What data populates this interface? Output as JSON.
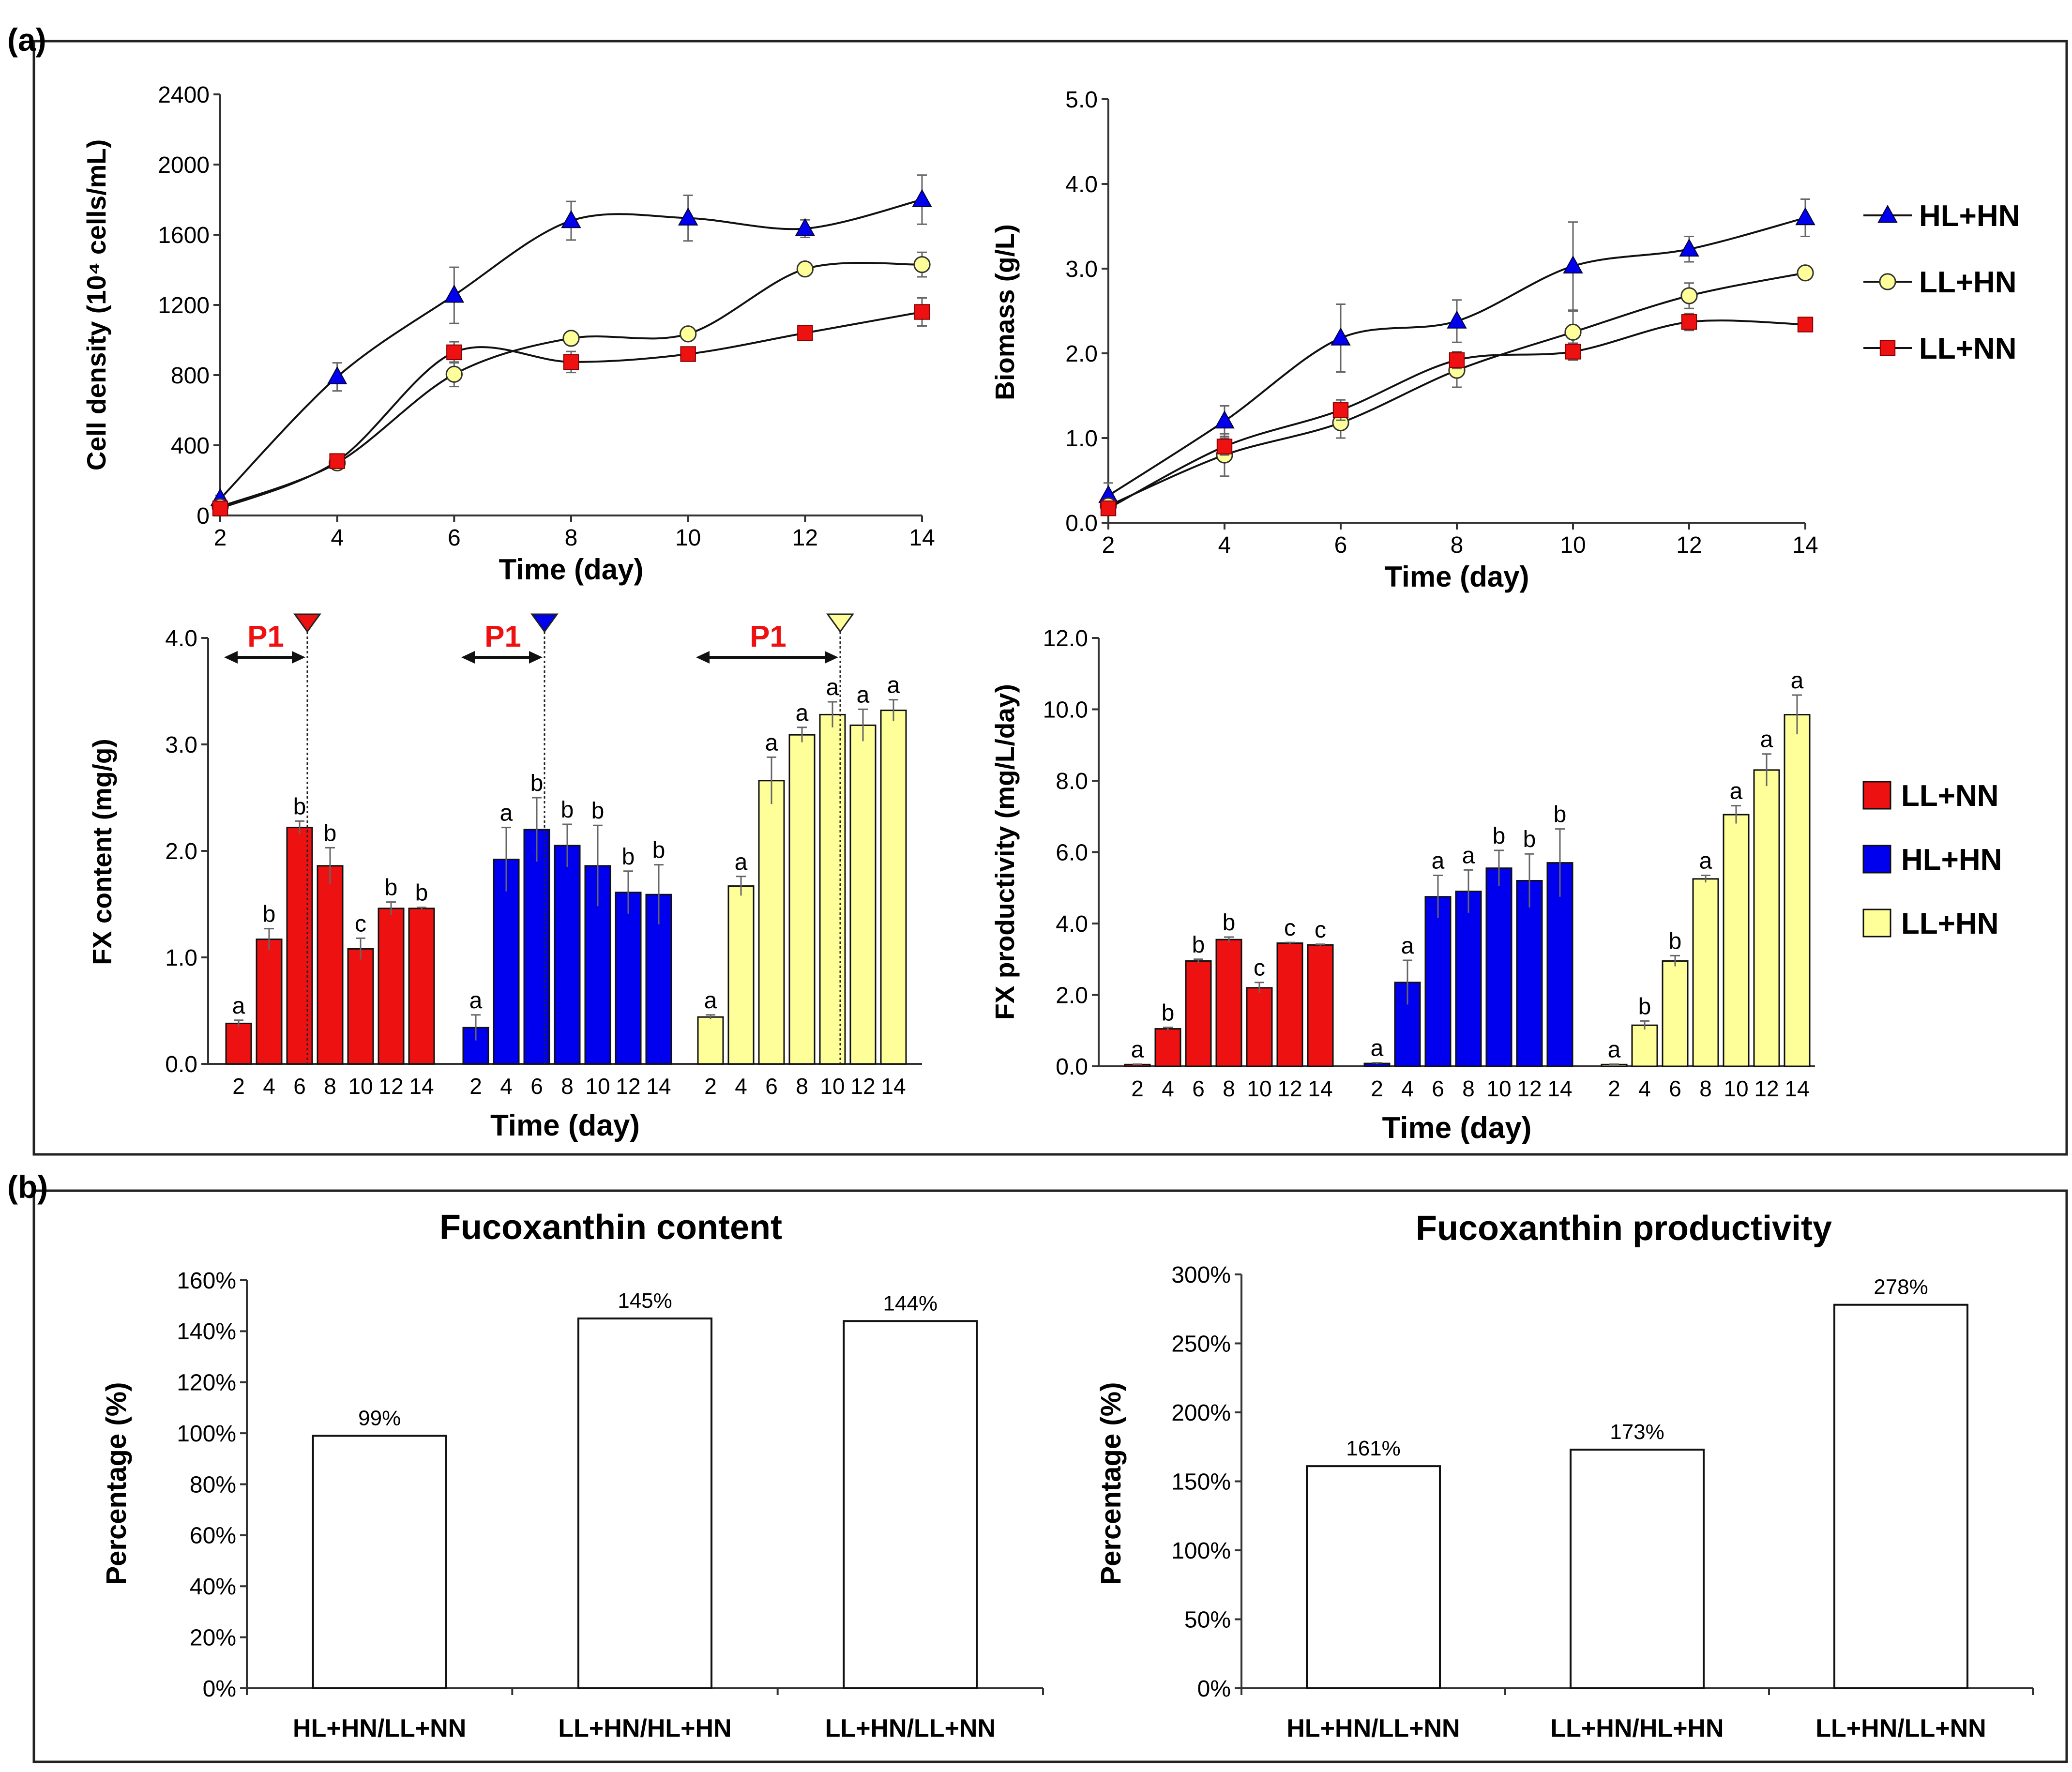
{
  "panel_a_label": "(a)",
  "panel_b_label": "(b)",
  "colors": {
    "HL+HN": "#0000ee",
    "LL+HN": "#ffff99",
    "LL+NN": "#ee1111"
  },
  "chart_data": [
    {
      "id": "cell",
      "type": "line",
      "xlabel": "Time (day)",
      "ylabel": "Cell density (10⁴ cells/mL)",
      "ylim": [
        0,
        2400
      ],
      "yticks": [
        "0",
        "400",
        "800",
        "1200",
        "1600",
        "2000",
        "2400"
      ],
      "x": [
        2,
        4,
        6,
        8,
        10,
        12,
        14
      ],
      "series": [
        {
          "name": "HL+HN",
          "marker": "triangle",
          "values": [
            95,
            790,
            1255,
            1680,
            1695,
            1635,
            1800
          ],
          "errors": [
            20,
            80,
            160,
            110,
            130,
            50,
            140
          ]
        },
        {
          "name": "LL+HN",
          "marker": "circle",
          "values": [
            50,
            300,
            805,
            1010,
            1035,
            1405,
            1430
          ],
          "errors": [
            10,
            20,
            70,
            25,
            25,
            25,
            70
          ]
        },
        {
          "name": "LL+NN",
          "marker": "square",
          "values": [
            40,
            310,
            930,
            875,
            920,
            1040,
            1160
          ],
          "errors": [
            10,
            20,
            60,
            60,
            30,
            25,
            80
          ]
        }
      ]
    },
    {
      "id": "biomass",
      "type": "line",
      "xlabel": "Time (day)",
      "ylabel": "Biomass (g/L)",
      "ylim": [
        0,
        5
      ],
      "yticks": [
        "0.0",
        "1.0",
        "2.0",
        "3.0",
        "4.0",
        "5.0"
      ],
      "x": [
        2,
        4,
        6,
        8,
        10,
        12,
        14
      ],
      "series": [
        {
          "name": "HL+HN",
          "marker": "triangle",
          "values": [
            0.32,
            1.2,
            2.18,
            2.38,
            3.03,
            3.23,
            3.6
          ],
          "errors": [
            0.15,
            0.18,
            0.4,
            0.25,
            0.52,
            0.15,
            0.22
          ]
        },
        {
          "name": "LL+HN",
          "marker": "circle",
          "values": [
            0.2,
            0.8,
            1.18,
            1.8,
            2.25,
            2.68,
            2.95
          ],
          "errors": [
            0.05,
            0.25,
            0.18,
            0.2,
            0.25,
            0.15,
            0.05
          ]
        },
        {
          "name": "LL+NN",
          "marker": "square",
          "values": [
            0.17,
            0.9,
            1.33,
            1.92,
            2.02,
            2.37,
            2.34
          ],
          "errors": [
            0.05,
            0.1,
            0.12,
            0.1,
            0.1,
            0.1,
            0.05
          ]
        }
      ]
    },
    {
      "id": "fxcontent",
      "type": "bar",
      "xlabel": "Time (day)",
      "ylabel": "FX content (mg/g)",
      "ylim": [
        0,
        4
      ],
      "yticks": [
        "0.0",
        "1.0",
        "2.0",
        "3.0",
        "4.0"
      ],
      "categories": [
        "2",
        "4",
        "6",
        "8",
        "10",
        "12",
        "14"
      ],
      "p1_label": "P1",
      "p1_index": [
        2,
        2,
        4
      ],
      "series": [
        {
          "name": "LL+NN",
          "values": [
            0.38,
            1.17,
            2.22,
            1.86,
            1.08,
            1.46,
            1.46
          ],
          "errors": [
            0.03,
            0.1,
            0.06,
            0.17,
            0.1,
            0.06,
            0.01
          ],
          "letters": [
            "a",
            "b",
            "b",
            "b",
            "c",
            "b",
            "b"
          ]
        },
        {
          "name": "HL+HN",
          "values": [
            0.34,
            1.92,
            2.2,
            2.05,
            1.86,
            1.61,
            1.59
          ],
          "errors": [
            0.12,
            0.3,
            0.3,
            0.2,
            0.38,
            0.2,
            0.28
          ],
          "letters": [
            "a",
            "a",
            "b",
            "b",
            "b",
            "b",
            "b"
          ]
        },
        {
          "name": "LL+HN",
          "values": [
            0.44,
            1.67,
            2.66,
            3.09,
            3.28,
            3.18,
            3.32
          ],
          "errors": [
            0.02,
            0.09,
            0.22,
            0.07,
            0.12,
            0.15,
            0.1
          ],
          "letters": [
            "a",
            "a",
            "a",
            "a",
            "a",
            "a",
            "a"
          ]
        }
      ]
    },
    {
      "id": "fxprod",
      "type": "bar",
      "xlabel": "Time (day)",
      "ylabel": "FX productivity (mg/L/day)",
      "ylim": [
        0,
        12
      ],
      "yticks": [
        "0.0",
        "2.0",
        "4.0",
        "6.0",
        "8.0",
        "10.0",
        "12.0"
      ],
      "categories": [
        "2",
        "4",
        "6",
        "8",
        "10",
        "12",
        "14"
      ],
      "series": [
        {
          "name": "LL+NN",
          "values": [
            0.05,
            1.05,
            2.95,
            3.55,
            2.2,
            3.45,
            3.4
          ],
          "errors": [
            0.01,
            0.04,
            0.05,
            0.07,
            0.15,
            0.02,
            0.02
          ],
          "letters": [
            "a",
            "b",
            "b",
            "b",
            "c",
            "c",
            "c"
          ]
        },
        {
          "name": "HL+HN",
          "values": [
            0.08,
            2.35,
            4.75,
            4.9,
            5.55,
            5.2,
            5.7
          ],
          "errors": [
            0.02,
            0.62,
            0.6,
            0.6,
            0.5,
            0.75,
            0.95
          ],
          "letters": [
            "a",
            "a",
            "a",
            "a",
            "b",
            "b",
            "b"
          ]
        },
        {
          "name": "LL+HN",
          "values": [
            0.05,
            1.15,
            2.95,
            5.25,
            7.05,
            8.3,
            9.85
          ],
          "errors": [
            0.01,
            0.12,
            0.15,
            0.1,
            0.25,
            0.45,
            0.55
          ],
          "letters": [
            "a",
            "b",
            "b",
            "a",
            "a",
            "a",
            "a"
          ]
        }
      ]
    },
    {
      "id": "pct_content",
      "type": "bar",
      "title": "Fucoxanthin content",
      "ylabel": "Percentage (%)",
      "ylim": [
        0,
        160
      ],
      "yticks": [
        "0%",
        "20%",
        "40%",
        "60%",
        "80%",
        "100%",
        "120%",
        "140%",
        "160%"
      ],
      "categories": [
        "HL+HN/LL+NN",
        "LL+HN/HL+HN",
        "LL+HN/LL+NN"
      ],
      "values": [
        99,
        145,
        144
      ],
      "labels": [
        "99%",
        "145%",
        "144%"
      ]
    },
    {
      "id": "pct_prod",
      "type": "bar",
      "title": "Fucoxanthin productivity",
      "ylabel": "Percentage (%)",
      "ylim": [
        0,
        300
      ],
      "yticks": [
        "0%",
        "50%",
        "100%",
        "150%",
        "200%",
        "250%",
        "300%"
      ],
      "categories": [
        "HL+HN/LL+NN",
        "LL+HN/HL+HN",
        "LL+HN/LL+NN"
      ],
      "values": [
        161,
        173,
        278
      ],
      "labels": [
        "161%",
        "173%",
        "278%"
      ]
    }
  ],
  "legend_top": [
    "HL+HN",
    "LL+HN",
    "LL+NN"
  ],
  "legend_bars": [
    "LL+NN",
    "HL+HN",
    "LL+HN"
  ]
}
